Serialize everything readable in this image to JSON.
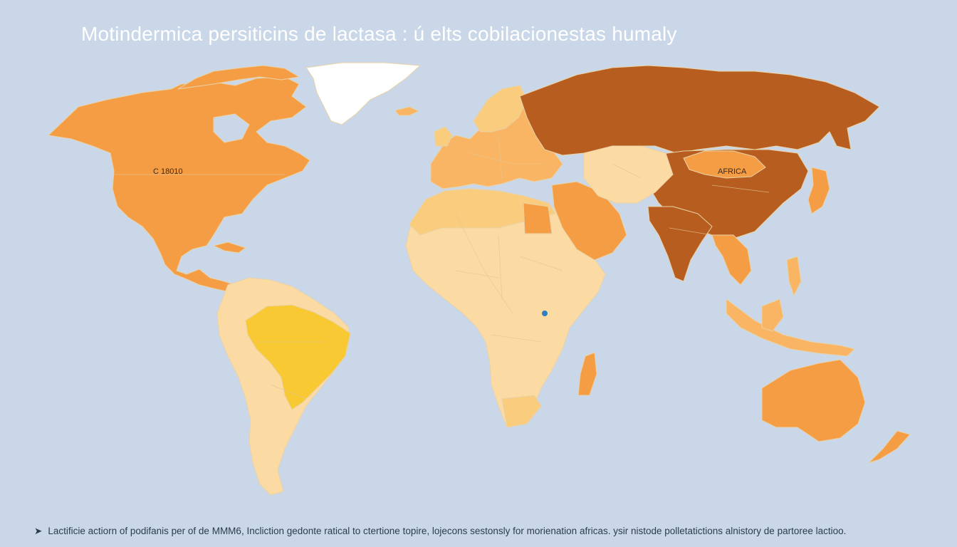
{
  "title": "Motindermica persiticins de lactasa : ú elts cobilacionestas humaly",
  "labels": {
    "north_america": "C 18010",
    "asia": "AFRICA"
  },
  "footer": {
    "bullet": "➤",
    "text": "Lactificie actiorn of podifanis per of de MMM6, Incliction gedonte ratical to ctertione topire, lojecons sestonsly for morienation africas. ysir nistode polletatictions alnistory de partoree lactioo."
  },
  "colors": {
    "ocean": "#c9d7e8",
    "darkest": "#b75d1f",
    "orange": "#f59d45",
    "light_orange": "#f9b563",
    "pale": "#f9cc7e",
    "palest": "#fbdba3",
    "yellow": "#f9c933",
    "white": "#ffffff"
  }
}
